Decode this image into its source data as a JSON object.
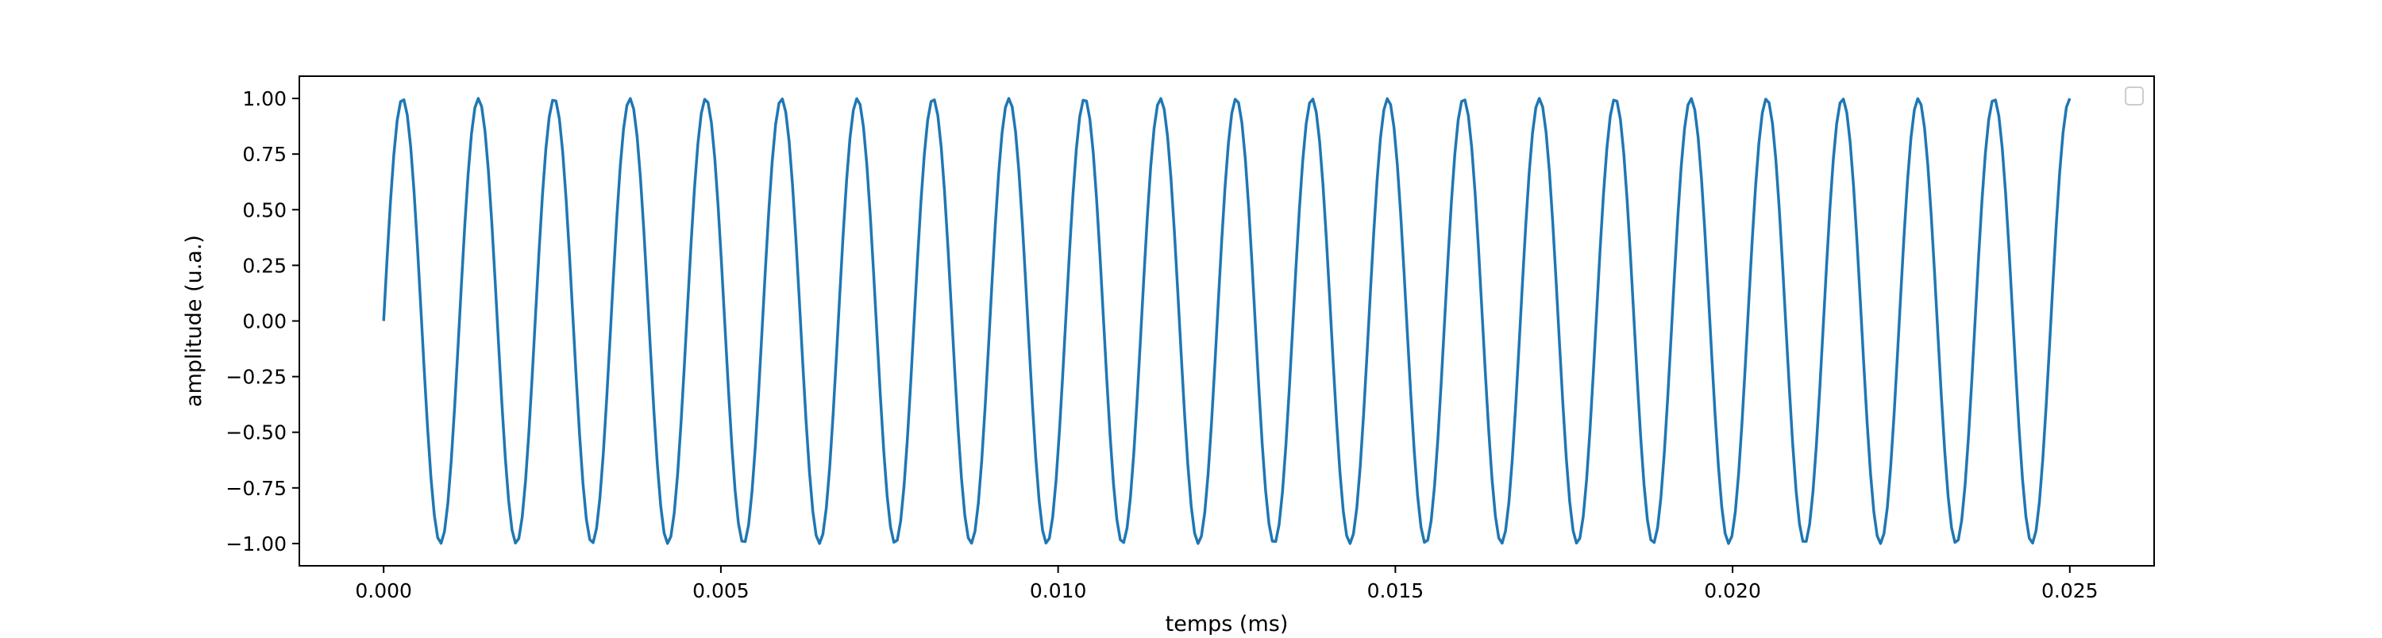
{
  "chart_data": {
    "type": "line",
    "title": "",
    "xlabel": "temps (ms)",
    "ylabel": "amplitude (u.a.)",
    "xlim": [
      -0.00125,
      0.02625
    ],
    "ylim": [
      -1.1,
      1.1
    ],
    "x_ticks": [
      0.0,
      0.005,
      0.01,
      0.015,
      0.02,
      0.025
    ],
    "x_tick_labels": [
      "0.000",
      "0.005",
      "0.010",
      "0.015",
      "0.020",
      "0.025"
    ],
    "y_ticks": [
      1.0,
      0.75,
      0.5,
      0.25,
      0.0,
      -0.25,
      -0.5,
      -0.75,
      -1.0
    ],
    "y_tick_labels": [
      "1.00",
      "0.75",
      "0.50",
      "0.25",
      "0.00",
      "−0.25",
      "−0.50",
      "−0.75",
      "−1.00"
    ],
    "grid": false,
    "legend": {
      "location": "upper right",
      "entries": []
    },
    "series": [
      {
        "color": "#1f77b4",
        "function": "sin(2*pi*f*t)",
        "frequency_per_ms": 890,
        "x_start": 0.0,
        "x_end": 0.025,
        "n_points": 500
      }
    ]
  }
}
